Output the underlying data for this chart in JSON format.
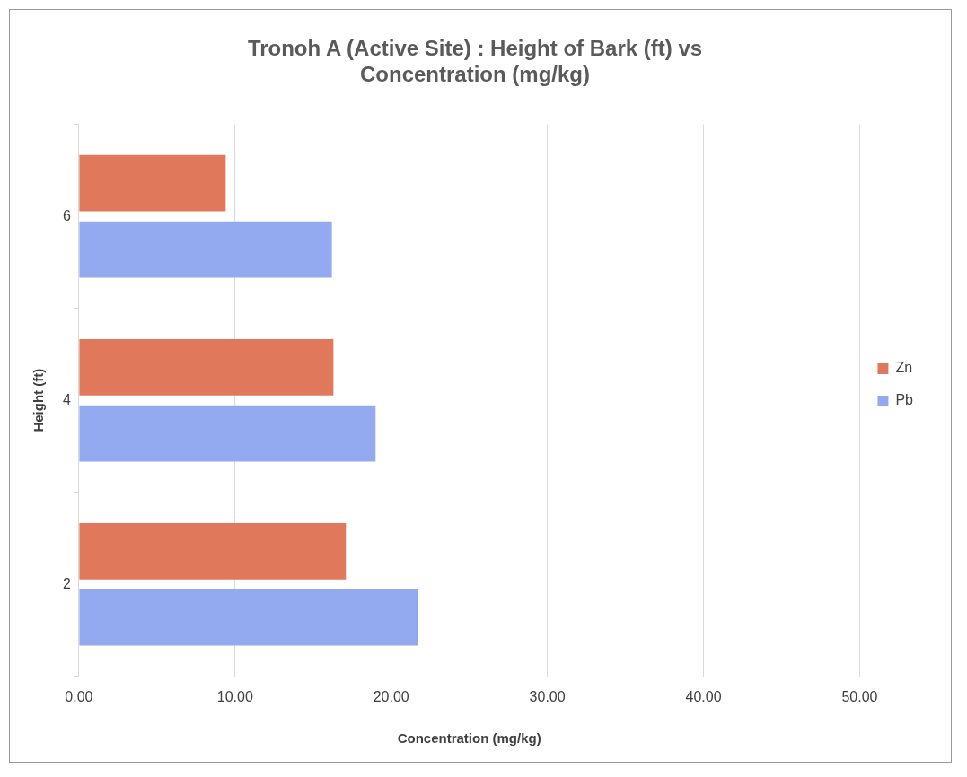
{
  "chart_data": {
    "type": "bar",
    "orientation": "horizontal",
    "title": "Tronoh A (Active Site) : Height of Bark (ft) vs Concentration (mg/kg)",
    "xlabel": "Concentration (mg/kg)",
    "ylabel": "Height (ft)",
    "categories": [
      "6",
      "4",
      "2"
    ],
    "series": [
      {
        "name": "Zn",
        "color": "#e0785c",
        "values": [
          9.4,
          16.3,
          17.1
        ]
      },
      {
        "name": "Pb",
        "color": "#93a9f0",
        "values": [
          16.2,
          19.0,
          21.7
        ]
      }
    ],
    "xlim": [
      0,
      50
    ],
    "xticks": [
      {
        "value": 0,
        "label": "0.00"
      },
      {
        "value": 10,
        "label": "10.00"
      },
      {
        "value": 20,
        "label": "20.00"
      },
      {
        "value": 30,
        "label": "30.00"
      },
      {
        "value": 40,
        "label": "40.00"
      },
      {
        "value": 50,
        "label": "50.00"
      }
    ],
    "grid": "x",
    "legend": "right"
  }
}
